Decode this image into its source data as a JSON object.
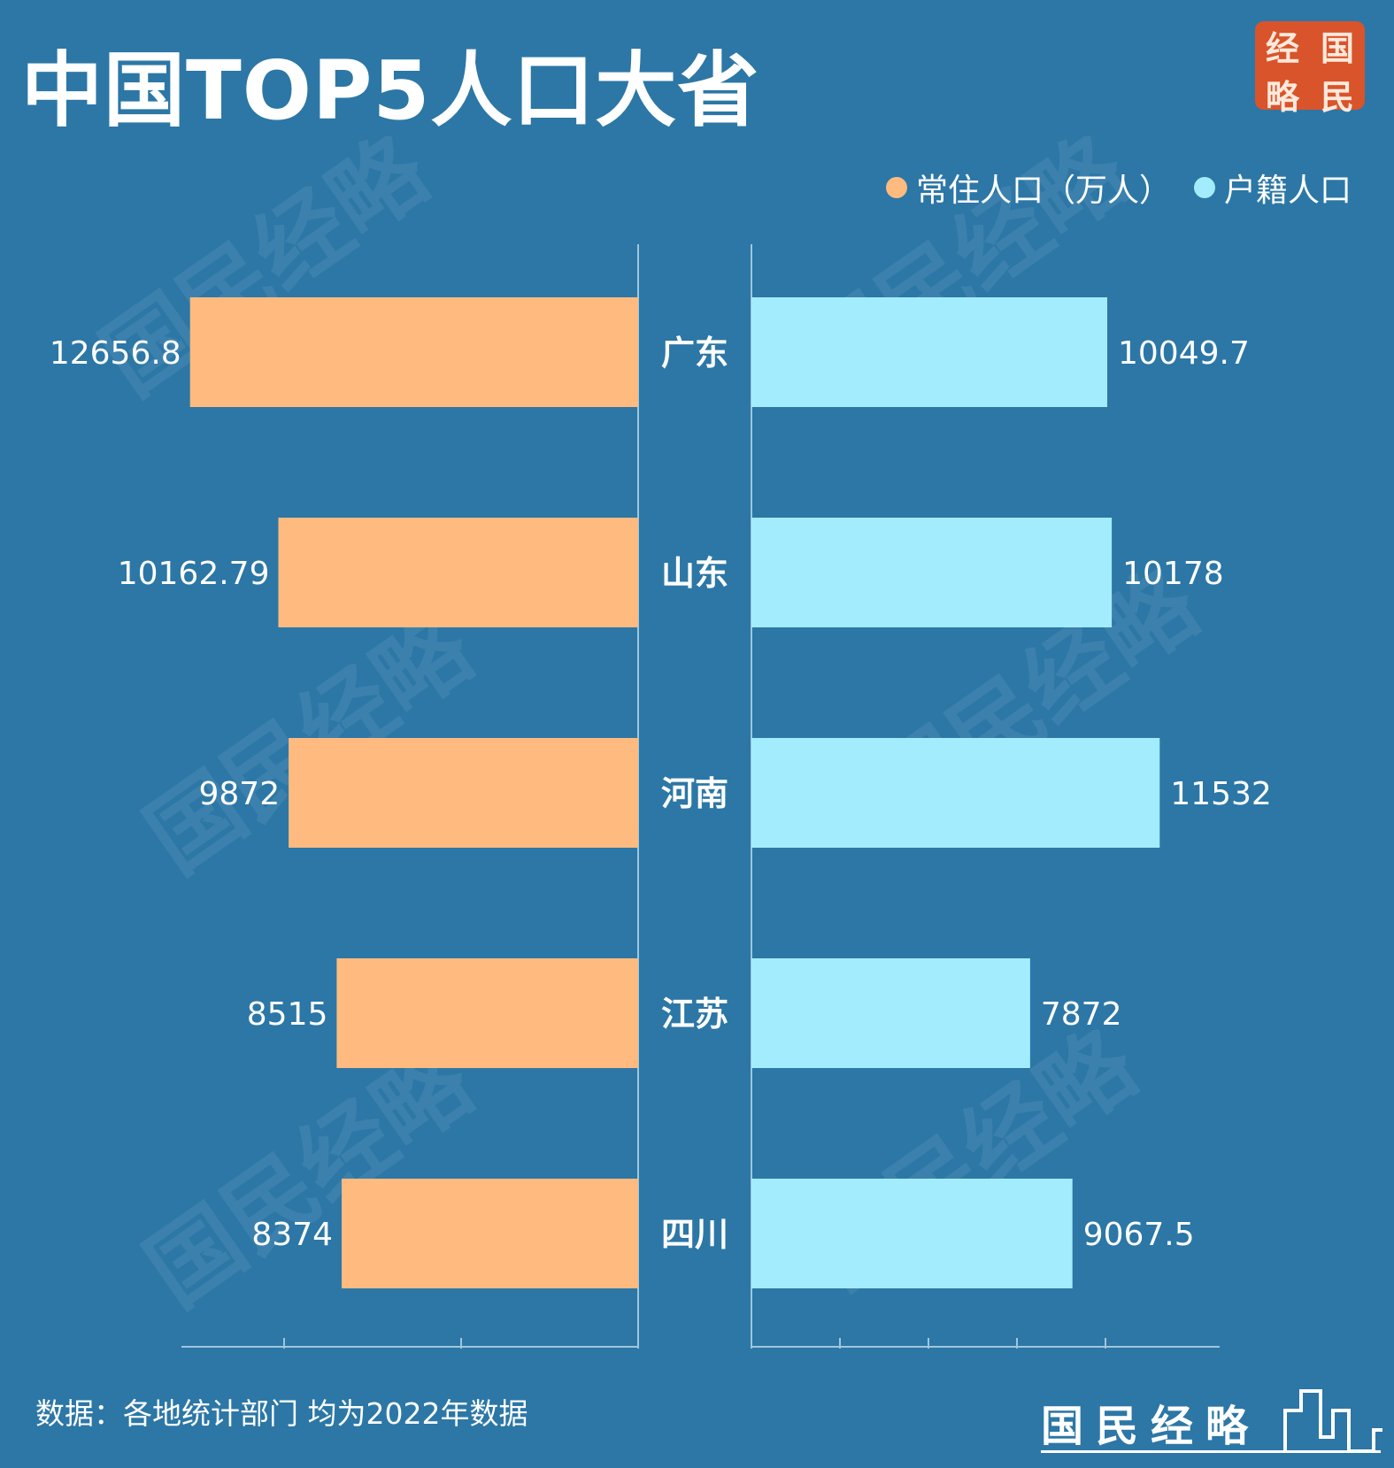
{
  "title": "中国TOP5人口大省",
  "logo_text": [
    "经",
    "国",
    "略",
    "民"
  ],
  "legend": [
    {
      "label": "常住人口（万人）",
      "color": "#ffbb7f"
    },
    {
      "label": "户籍人口",
      "color": "#a3ecfe"
    }
  ],
  "source": "数据：各地统计部门 均为2022年数据",
  "brand": "国民经略",
  "watermark": "国民经略",
  "colors": {
    "background": "#2c77a6",
    "left_bar": "#ffbb7f",
    "right_bar": "#a3ecfe"
  },
  "chart_data": {
    "type": "bar",
    "orientation": "horizontal-butterfly",
    "title": "中国TOP5人口大省",
    "categories": [
      "广东",
      "山东",
      "河南",
      "江苏",
      "四川"
    ],
    "series": [
      {
        "name": "常住人口（万人）",
        "values": [
          12656.8,
          10162.79,
          9872,
          8515,
          8374
        ],
        "labels": [
          "12656.8",
          "10162.79",
          "9872",
          "8515",
          "8374"
        ]
      },
      {
        "name": "户籍人口",
        "values": [
          10049.7,
          10178,
          11532,
          7872,
          9067.5
        ],
        "labels": [
          "10049.7",
          "10178",
          "11532",
          "7872",
          "9067.5"
        ]
      }
    ],
    "xlim": [
      0,
      18000
    ],
    "grid": false,
    "legend": "top-right"
  }
}
